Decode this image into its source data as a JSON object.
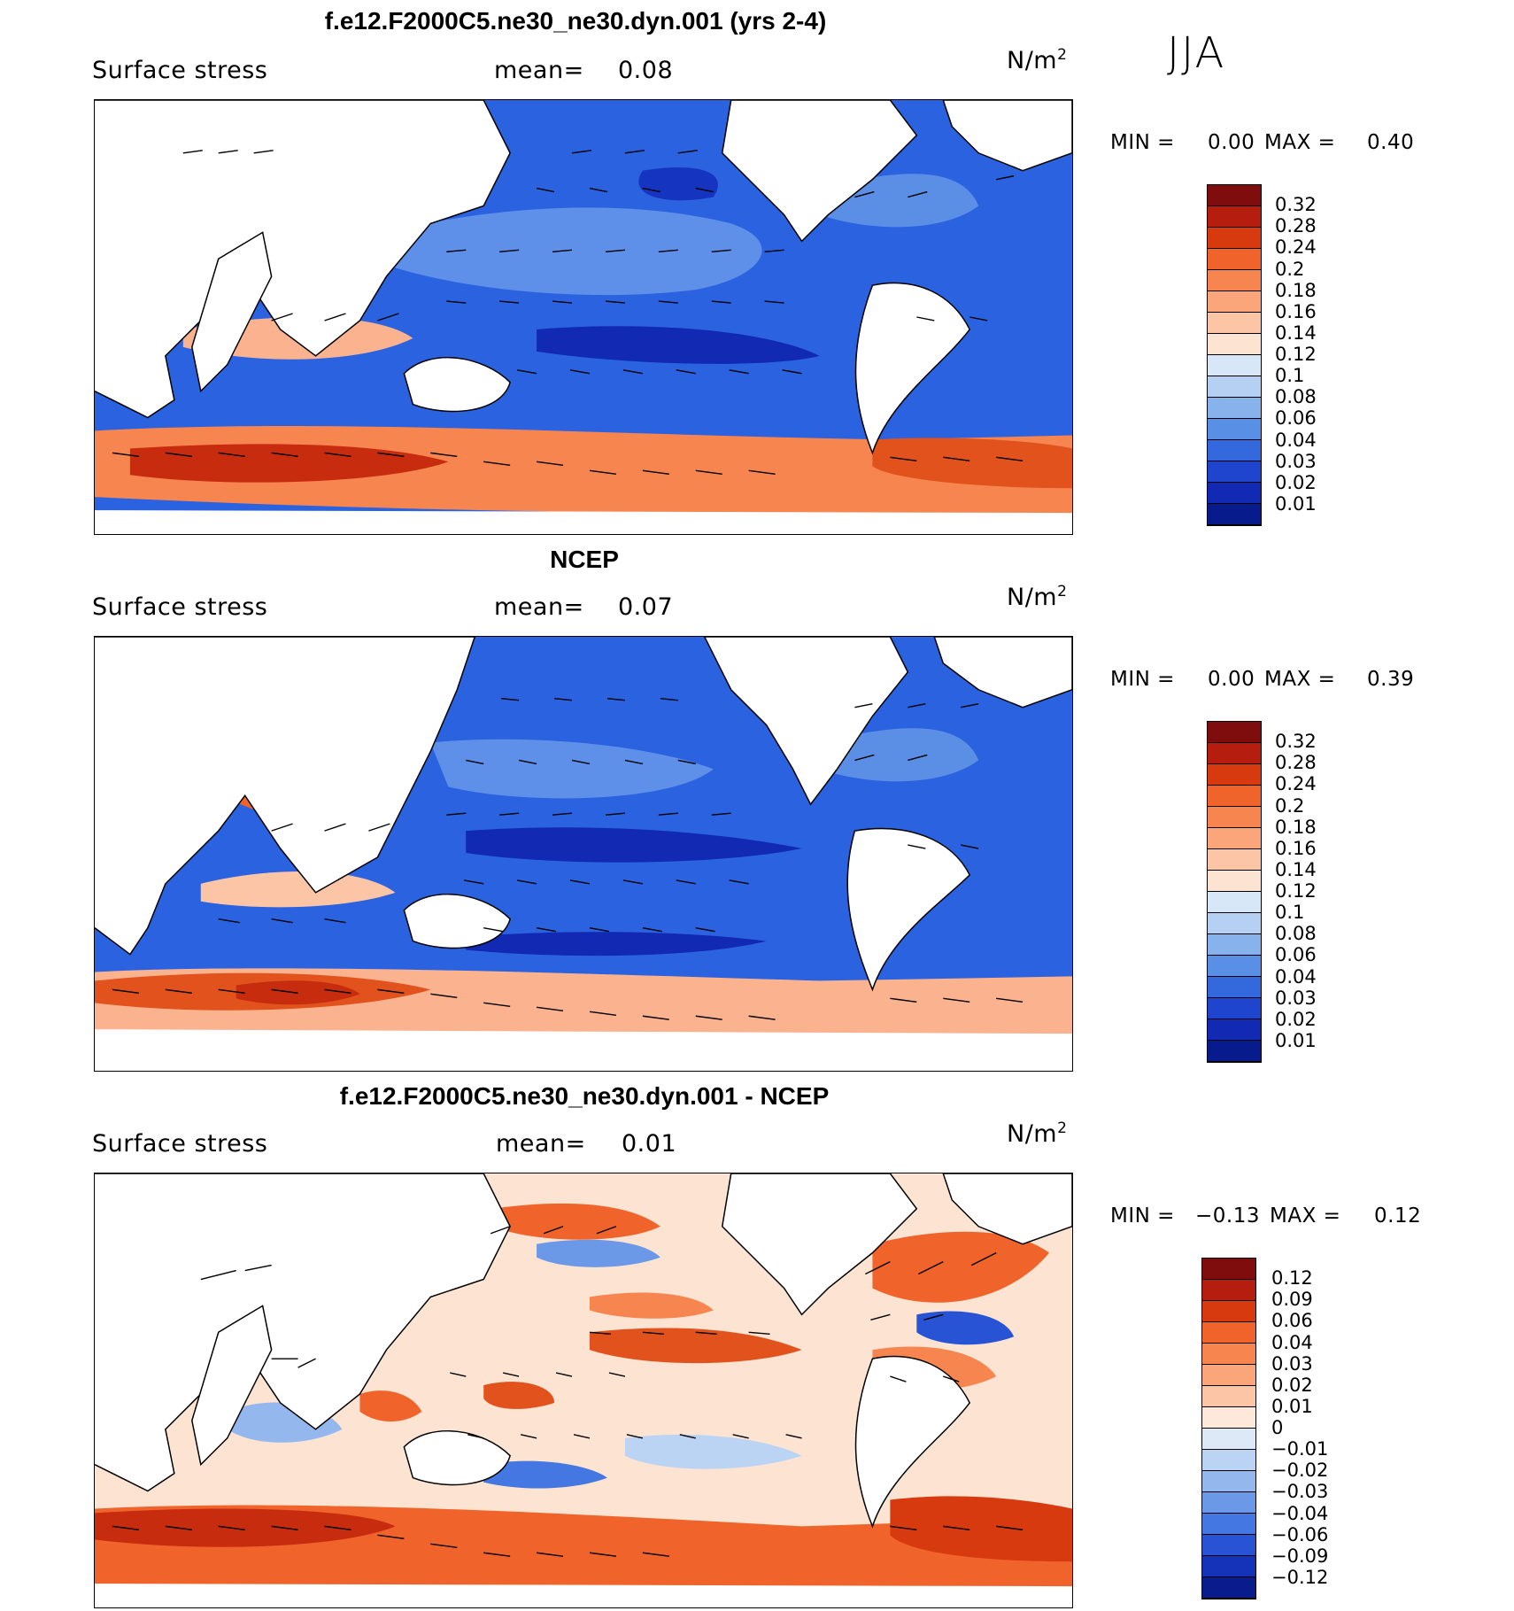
{
  "season_label": "JJA",
  "unit": "N/m",
  "unit_superscript": "2",
  "panels": [
    {
      "title": "f.e12.F2000C5.ne30_ne30.dyn.001 (yrs 2-4)",
      "field_label": "Surface stress",
      "mean_label": "mean=",
      "mean_value": "0.08",
      "min_label": "MIN =",
      "min_value": "0.00",
      "max_label": "MAX =",
      "max_value": "0.40",
      "colorbar_ticks": [
        "0.32",
        "0.28",
        "0.24",
        "0.2",
        "0.18",
        "0.16",
        "0.14",
        "0.12",
        "0.1",
        "0.08",
        "0.06",
        "0.04",
        "0.03",
        "0.02",
        "0.01"
      ],
      "colorbar_colors": [
        "#7f0d0d",
        "#b51d0e",
        "#d83a0f",
        "#f0642c",
        "#f7854f",
        "#fba57a",
        "#fcc6a6",
        "#fde4d2",
        "#d8e7f8",
        "#b5d0f2",
        "#88b2ec",
        "#5a8fe6",
        "#3468dd",
        "#1f45cf",
        "#1129b3",
        "#071b8c"
      ]
    },
    {
      "title": "NCEP",
      "field_label": "Surface stress",
      "mean_label": "mean=",
      "mean_value": "0.07",
      "min_label": "MIN =",
      "min_value": "0.00",
      "max_label": "MAX =",
      "max_value": "0.39",
      "colorbar_ticks": [
        "0.32",
        "0.28",
        "0.24",
        "0.2",
        "0.18",
        "0.16",
        "0.14",
        "0.12",
        "0.1",
        "0.08",
        "0.06",
        "0.04",
        "0.03",
        "0.02",
        "0.01"
      ],
      "colorbar_colors": [
        "#7f0d0d",
        "#b51d0e",
        "#d83a0f",
        "#f0642c",
        "#f7854f",
        "#fba57a",
        "#fcc6a6",
        "#fde4d2",
        "#d8e7f8",
        "#b5d0f2",
        "#88b2ec",
        "#5a8fe6",
        "#3468dd",
        "#1f45cf",
        "#1129b3",
        "#071b8c"
      ]
    },
    {
      "title": "f.e12.F2000C5.ne30_ne30.dyn.001 - NCEP",
      "field_label": "Surface stress",
      "mean_label": "mean=",
      "mean_value": "0.01",
      "min_label": "MIN =",
      "min_value": "−0.13",
      "max_label": "MAX =",
      "max_value": "0.12",
      "colorbar_ticks": [
        "0.12",
        "0.09",
        "0.06",
        "0.04",
        "0.03",
        "0.02",
        "0.01",
        "0",
        "−0.01",
        "−0.02",
        "−0.03",
        "−0.04",
        "−0.06",
        "−0.09",
        "−0.12"
      ],
      "colorbar_colors": [
        "#7f0d0d",
        "#b51d0e",
        "#d83a0f",
        "#f0642c",
        "#f7854f",
        "#fba57a",
        "#fcc6a6",
        "#fde8da",
        "#dde9f7",
        "#bcd4f3",
        "#94b8ee",
        "#6b99e8",
        "#4477e1",
        "#2753d4",
        "#1533b8",
        "#081c8c"
      ]
    }
  ]
}
